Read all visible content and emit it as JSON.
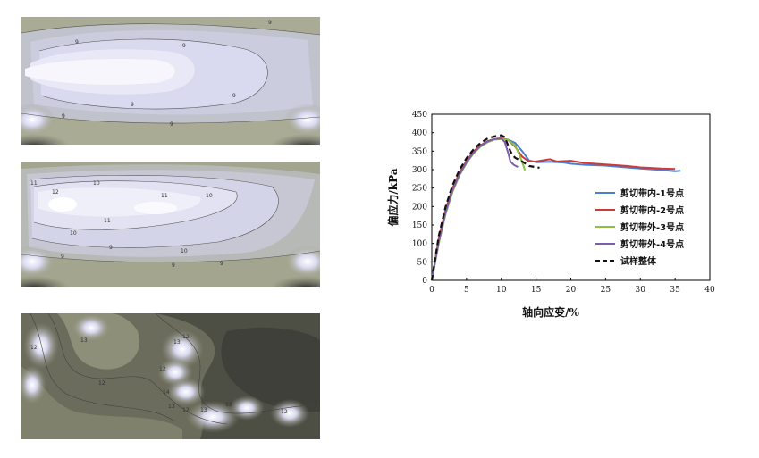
{
  "contour_panels": [
    {
      "name": "panel-1",
      "labels": [
        "9",
        "9",
        "9",
        "9",
        "9",
        "9",
        "9"
      ]
    },
    {
      "name": "panel-2",
      "labels": [
        "11",
        "12",
        "10",
        "11",
        "10",
        "11",
        "10",
        "10",
        "9",
        "9",
        "9",
        "9"
      ]
    },
    {
      "name": "panel-3",
      "labels": [
        "12",
        "13",
        "12",
        "13",
        "12",
        "12",
        "14",
        "13",
        "12",
        "13",
        "13",
        "12"
      ]
    }
  ],
  "chart_data": {
    "type": "line",
    "title": "",
    "xlabel": "轴向应变/%",
    "ylabel": "偏应力/kPa",
    "xlim": [
      0,
      40
    ],
    "ylim": [
      0,
      450
    ],
    "xticks": [
      0,
      5,
      10,
      15,
      20,
      25,
      30,
      35,
      40
    ],
    "yticks": [
      0,
      50,
      100,
      150,
      200,
      250,
      300,
      350,
      400,
      450
    ],
    "legend_position": "right",
    "series": [
      {
        "name": "剪切带内-1号点",
        "color": "#4a7ed0",
        "dash": "solid",
        "x": [
          0,
          1,
          2,
          3,
          4,
          5,
          6,
          7,
          8,
          9,
          10,
          11,
          12,
          13,
          14,
          15,
          17,
          19,
          20,
          22,
          25,
          28,
          30,
          33,
          35,
          35.8
        ],
        "y": [
          0,
          110,
          190,
          248,
          290,
          322,
          347,
          364,
          376,
          382,
          384,
          381,
          372,
          350,
          325,
          320,
          321,
          319,
          316,
          313,
          311,
          306,
          303,
          299,
          296,
          297
        ]
      },
      {
        "name": "剪切带内-2号点",
        "color": "#cc3b3b",
        "dash": "solid",
        "x": [
          0,
          1,
          2,
          3,
          4,
          5,
          6,
          7,
          8,
          9,
          10,
          11,
          12,
          13,
          14,
          15,
          17,
          18,
          20,
          22,
          25,
          28,
          30,
          33,
          35
        ],
        "y": [
          0,
          112,
          192,
          250,
          292,
          324,
          349,
          366,
          377,
          383,
          385,
          380,
          362,
          335,
          322,
          322,
          328,
          322,
          324,
          318,
          314,
          310,
          306,
          303,
          302
        ]
      },
      {
        "name": "剪切带外-3号点",
        "color": "#8fc042",
        "dash": "solid",
        "x": [
          0,
          1,
          2,
          3,
          4,
          5,
          6,
          7,
          8,
          9,
          10,
          11,
          12,
          12.6,
          13.2,
          13.4
        ],
        "y": [
          0,
          100,
          180,
          240,
          285,
          318,
          344,
          362,
          374,
          381,
          383,
          380,
          365,
          340,
          310,
          298
        ]
      },
      {
        "name": "剪切带外-4号点",
        "color": "#7b5eaa",
        "dash": "solid",
        "x": [
          0,
          1,
          2,
          3,
          4,
          5,
          6,
          7,
          8,
          9,
          10,
          10.5,
          11,
          11.3,
          11.8,
          12.4
        ],
        "y": [
          0,
          105,
          185,
          245,
          288,
          320,
          346,
          364,
          376,
          383,
          384,
          375,
          345,
          322,
          313,
          307
        ]
      },
      {
        "name": "试样整体",
        "color": "#111111",
        "dash": "dashed",
        "x": [
          0,
          1,
          2,
          3,
          4,
          5,
          6,
          7,
          8,
          9,
          10,
          10.5,
          11,
          11.3,
          11.6,
          12,
          13,
          14,
          15.5
        ],
        "y": [
          0,
          120,
          200,
          258,
          300,
          331,
          355,
          372,
          384,
          390,
          393,
          388,
          365,
          350,
          340,
          332,
          322,
          310,
          305
        ]
      }
    ]
  }
}
